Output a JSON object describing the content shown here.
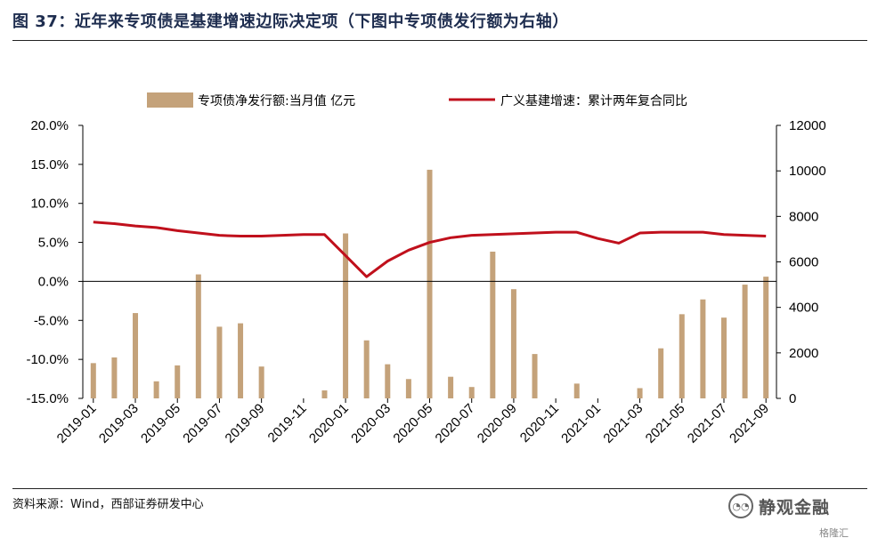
{
  "title": "图 37：近年来专项债是基建增速边际决定项（下图中专项债发行额为右轴）",
  "source": "资料来源：Wind，西部证券研发中心",
  "watermark": {
    "brand": "静观金融",
    "secondary": "格隆汇"
  },
  "colors": {
    "bar": "#c4a27a",
    "line": "#c0101c",
    "title": "#1e2d4f"
  },
  "chart_data": {
    "type": "bar+line",
    "x": [
      "2019-01",
      "2019-02",
      "2019-03",
      "2019-04",
      "2019-05",
      "2019-06",
      "2019-07",
      "2019-08",
      "2019-09",
      "2019-10",
      "2019-11",
      "2019-12",
      "2020-01",
      "2020-02",
      "2020-03",
      "2020-04",
      "2020-05",
      "2020-06",
      "2020-07",
      "2020-08",
      "2020-09",
      "2020-10",
      "2020-11",
      "2020-12",
      "2021-01",
      "2021-02",
      "2021-03",
      "2021-04",
      "2021-05",
      "2021-06",
      "2021-07",
      "2021-08",
      "2021-09"
    ],
    "x_tick_labels": [
      "2019-01",
      "2019-03",
      "2019-05",
      "2019-07",
      "2019-09",
      "2019-11",
      "2020-01",
      "2020-03",
      "2020-05",
      "2020-07",
      "2020-09",
      "2020-11",
      "2021-01",
      "2021-03",
      "2021-05",
      "2021-07",
      "2021-09"
    ],
    "legend_position": "top",
    "series": [
      {
        "name": "专项债净发行额:当月值 亿元",
        "type": "bar",
        "axis": "right",
        "values": [
          1550,
          1800,
          3750,
          750,
          1450,
          5450,
          3150,
          3300,
          1400,
          null,
          null,
          350,
          7250,
          2550,
          1500,
          850,
          10050,
          950,
          500,
          6450,
          4800,
          1950,
          null,
          650,
          null,
          null,
          450,
          2200,
          3700,
          4350,
          3550,
          5000,
          5350
        ]
      },
      {
        "name": "广义基建增速：累计两年复合同比",
        "type": "line",
        "axis": "left",
        "values": [
          7.6,
          7.4,
          7.1,
          6.9,
          6.5,
          6.2,
          5.9,
          5.8,
          5.8,
          5.9,
          6.0,
          6.0,
          null,
          0.6,
          2.6,
          4.0,
          5.0,
          5.6,
          5.9,
          6.0,
          6.1,
          6.2,
          6.3,
          6.3,
          5.5,
          4.9,
          6.2,
          6.3,
          6.3,
          6.3,
          6.0,
          5.9,
          5.8
        ]
      }
    ],
    "y_left": {
      "ticks": [
        "20.0%",
        "15.0%",
        "10.0%",
        "5.0%",
        "0.0%",
        "-5.0%",
        "-10.0%",
        "-15.0%"
      ],
      "ylim": [
        -15,
        20
      ]
    },
    "y_right": {
      "ticks": [
        "12000",
        "10000",
        "8000",
        "6000",
        "4000",
        "2000",
        "0"
      ],
      "ylim": [
        0,
        12000
      ]
    },
    "grid": false
  }
}
